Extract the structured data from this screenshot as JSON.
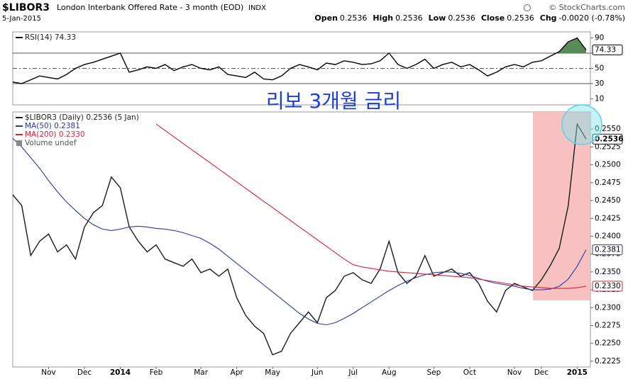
{
  "header": {
    "symbol": "$LIBOR3",
    "name": "London Interbank Offered Rate - 3 month (EOD)",
    "exchange": "INDX",
    "date": "5-Jan-2015",
    "quote": [
      {
        "label": "Open",
        "value": "0.2536"
      },
      {
        "label": "High",
        "value": "0.2536"
      },
      {
        "label": "Low",
        "value": "0.2536"
      },
      {
        "label": "Close",
        "value": "0.2536"
      },
      {
        "label": "Chg",
        "value": "-0.0020 (-0.78%)"
      }
    ],
    "credit": "© StockCharts.com"
  },
  "annotation": "리보 3개월 금리",
  "chart_data": [
    {
      "type": "line",
      "ylim": [
        2,
        98
      ],
      "yticks": [
        10,
        30,
        50,
        70,
        90
      ],
      "hlines": [
        {
          "value": 70,
          "style": "solid"
        },
        {
          "value": 50,
          "style": "dashed"
        },
        {
          "value": 30,
          "style": "solid"
        }
      ],
      "fill_above": 70,
      "fill_color": "#5a8a5a",
      "series": [
        {
          "name": "RSI(14) 74.33",
          "color": "#000000",
          "last_label": "74.33",
          "values": [
            32,
            30,
            35,
            40,
            38,
            36,
            42,
            50,
            55,
            58,
            62,
            66,
            70,
            45,
            48,
            52,
            50,
            55,
            47,
            52,
            55,
            50,
            48,
            52,
            42,
            40,
            38,
            45,
            36,
            35,
            40,
            50,
            55,
            52,
            48,
            57,
            55,
            60,
            58,
            55,
            56,
            60,
            70,
            55,
            50,
            55,
            62,
            50,
            55,
            58,
            52,
            55,
            48,
            40,
            45,
            52,
            55,
            52,
            58,
            60,
            66,
            72,
            85,
            90,
            74.33
          ]
        }
      ]
    },
    {
      "type": "line",
      "ylim": [
        0.2217,
        0.2574
      ],
      "yticks": [
        {
          "value": 0.2225,
          "label": "0.2225"
        },
        {
          "value": 0.225,
          "label": "0.2250"
        },
        {
          "value": 0.2275,
          "label": "0.2275"
        },
        {
          "value": 0.23,
          "label": "0.2300"
        },
        {
          "value": 0.2325,
          "label": "0.2325"
        },
        {
          "value": 0.235,
          "label": "0.2350"
        },
        {
          "value": 0.2375,
          "label": "0.2375"
        },
        {
          "value": 0.24,
          "label": "0.2400"
        },
        {
          "value": 0.2425,
          "label": "0.2425"
        },
        {
          "value": 0.245,
          "label": "0.2450"
        },
        {
          "value": 0.2475,
          "label": "0.2475"
        },
        {
          "value": 0.25,
          "label": "0.2500"
        },
        {
          "value": 0.2525,
          "label": "0.2525"
        },
        {
          "value": 0.255,
          "label": "0.2550"
        }
      ],
      "categories": [
        null,
        null,
        null,
        null,
        "Nov",
        null,
        null,
        null,
        "Dec",
        null,
        null,
        null,
        "2014",
        null,
        null,
        null,
        "Feb",
        null,
        null,
        null,
        null,
        "Mar",
        null,
        null,
        null,
        "Apr",
        null,
        null,
        null,
        "May",
        null,
        null,
        null,
        null,
        "Jun",
        null,
        null,
        null,
        "Jul",
        null,
        null,
        null,
        "Aug",
        null,
        null,
        null,
        null,
        "Sep",
        null,
        null,
        null,
        "Oct",
        null,
        null,
        null,
        null,
        "Nov",
        null,
        null,
        "Dec",
        null,
        null,
        null,
        "2015",
        null
      ],
      "legend_extra": "Volume undef",
      "series": [
        {
          "name": "$LIBOR3 (Daily) 0.2536 (5 Jan)",
          "color": "#1a1a1a",
          "last_label": "0.2536",
          "values": [
            0.2458,
            0.2443,
            0.2373,
            0.2393,
            0.2403,
            0.2378,
            0.2388,
            0.2368,
            0.2413,
            0.2433,
            0.2443,
            0.2483,
            0.2468,
            0.2413,
            0.2393,
            0.2378,
            0.2388,
            0.2368,
            0.2363,
            0.2358,
            0.2368,
            0.2349,
            0.2354,
            0.2344,
            0.2354,
            0.2314,
            0.2289,
            0.2274,
            0.2264,
            0.2234,
            0.2239,
            0.2264,
            0.2279,
            0.2294,
            0.2279,
            0.2314,
            0.2324,
            0.2344,
            0.2349,
            0.2339,
            0.2334,
            0.2354,
            0.2393,
            0.2349,
            0.2334,
            0.2344,
            0.2373,
            0.2344,
            0.2349,
            0.2354,
            0.2344,
            0.2349,
            0.2334,
            0.2309,
            0.2294,
            0.2324,
            0.2334,
            0.2329,
            0.2324,
            0.2339,
            0.2359,
            0.2383,
            0.2443,
            0.2557,
            0.2536
          ]
        },
        {
          "name": "MA(50) 0.2381",
          "color": "#2b3a9e",
          "last_label": "0.2381",
          "values": [
            0.2537,
            0.2525,
            0.251,
            0.2495,
            0.2478,
            0.2462,
            0.2448,
            0.2436,
            0.2425,
            0.2416,
            0.241,
            0.2408,
            0.241,
            0.2413,
            0.2414,
            0.2413,
            0.2411,
            0.241,
            0.2408,
            0.2405,
            0.2401,
            0.2397,
            0.239,
            0.2382,
            0.2372,
            0.2362,
            0.2352,
            0.2342,
            0.2332,
            0.2322,
            0.2312,
            0.2302,
            0.2292,
            0.2284,
            0.2278,
            0.2276,
            0.2279,
            0.2285,
            0.2292,
            0.23,
            0.2308,
            0.2316,
            0.2324,
            0.2331,
            0.2337,
            0.2342,
            0.2346,
            0.2349,
            0.235,
            0.235,
            0.2348,
            0.2345,
            0.2341,
            0.2337,
            0.2334,
            0.2332,
            0.233,
            0.2327,
            0.2325,
            0.2325,
            0.2326,
            0.233,
            0.234,
            0.2358,
            0.2381
          ]
        },
        {
          "name": "MA(200) 0.2330",
          "color": "#d6213b",
          "last_label": "0.2330",
          "values": [
            null,
            null,
            null,
            null,
            null,
            null,
            null,
            null,
            null,
            null,
            null,
            null,
            null,
            null,
            null,
            null,
            0.2557,
            0.2548,
            0.2539,
            0.253,
            0.2521,
            0.2512,
            0.2503,
            0.2494,
            0.2485,
            0.2476,
            0.2467,
            0.2458,
            0.2449,
            0.244,
            0.2431,
            0.2422,
            0.2413,
            0.2404,
            0.2395,
            0.2386,
            0.2377,
            0.2368,
            0.236,
            0.2357,
            0.2355,
            0.2353,
            0.2351,
            0.235,
            0.2349,
            0.2348,
            0.2347,
            0.2346,
            0.2345,
            0.2344,
            0.2343,
            0.2342,
            0.234,
            0.2338,
            0.2336,
            0.2334,
            0.2332,
            0.233,
            0.2329,
            0.2328,
            0.2327,
            0.2327,
            0.2327,
            0.2328,
            0.233
          ]
        }
      ]
    }
  ]
}
